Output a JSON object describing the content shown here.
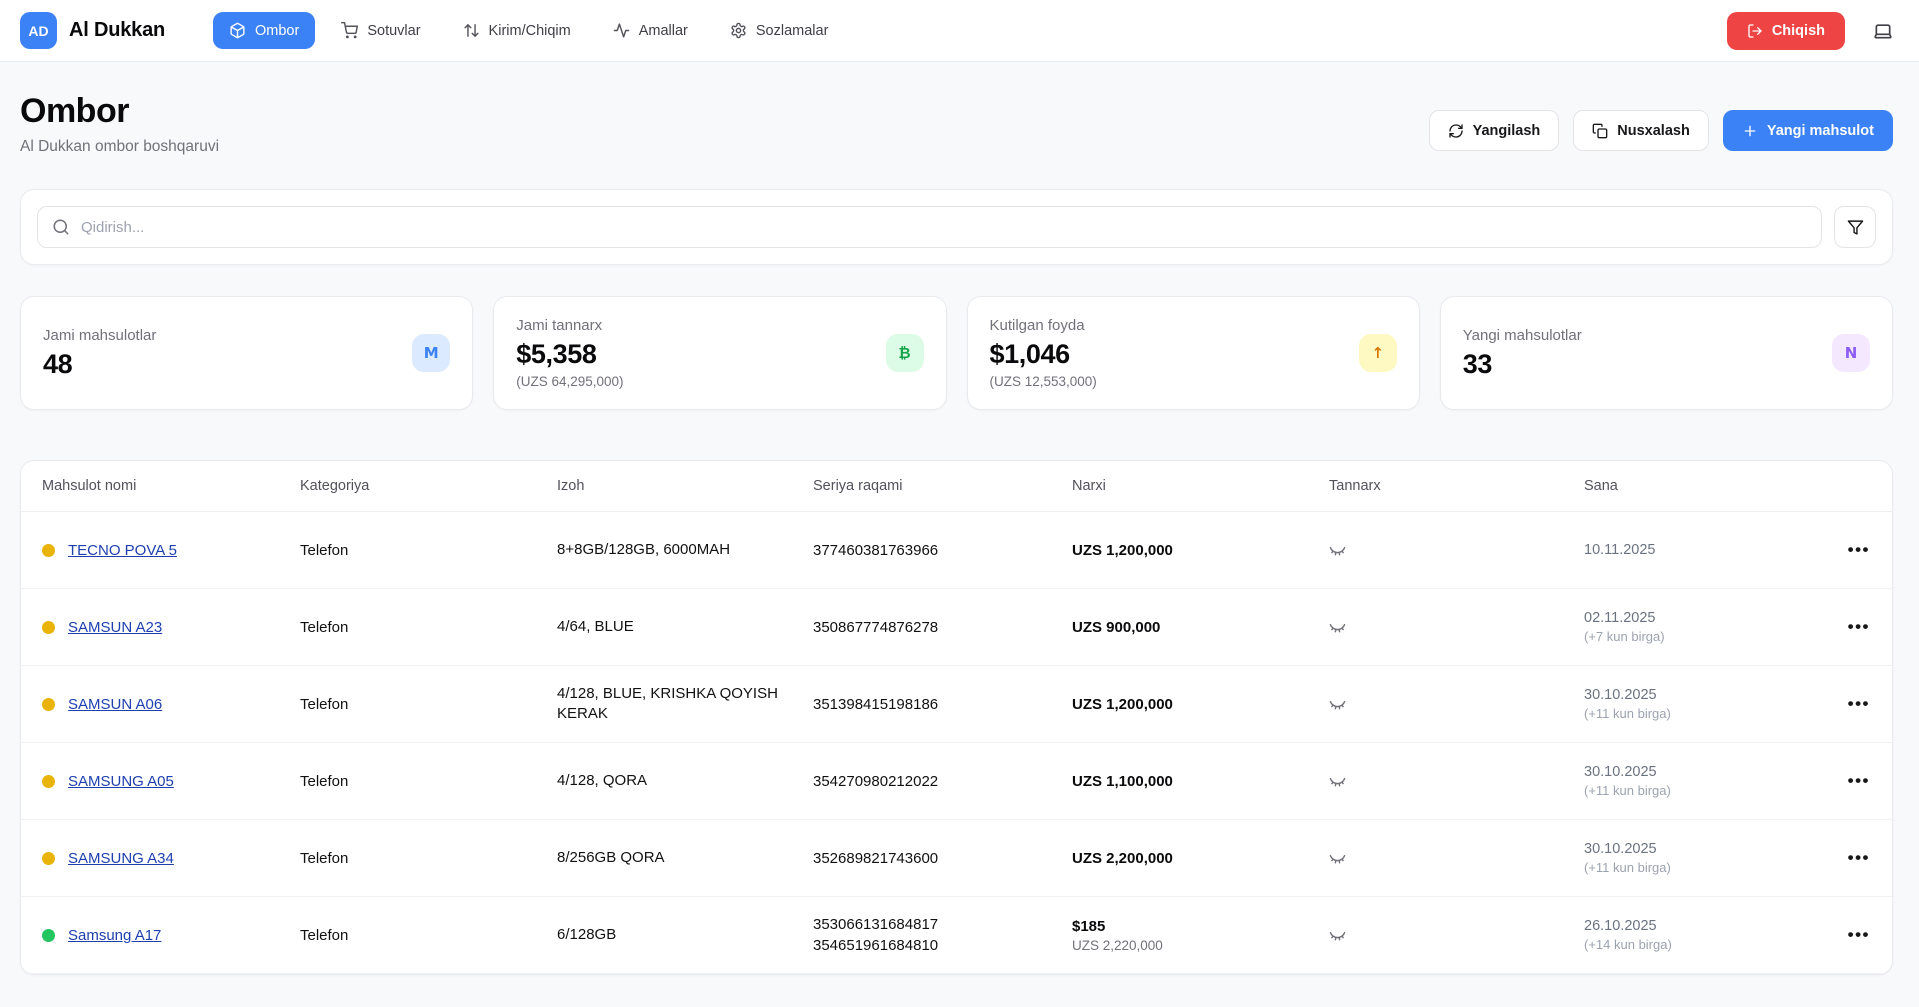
{
  "brand": {
    "initials": "AD",
    "name": "Al Dukkan"
  },
  "nav": {
    "items": [
      {
        "label": "Ombor",
        "icon": "package-icon",
        "active": true
      },
      {
        "label": "Sotuvlar",
        "icon": "cart-icon",
        "active": false
      },
      {
        "label": "Kirim/Chiqim",
        "icon": "arrows-up-down-icon",
        "active": false
      },
      {
        "label": "Amallar",
        "icon": "activity-icon",
        "active": false
      },
      {
        "label": "Sozlamalar",
        "icon": "gear-icon",
        "active": false
      }
    ],
    "logout_label": "Chiqish"
  },
  "header": {
    "title": "Ombor",
    "subtitle": "Al Dukkan ombor boshqaruvi",
    "refresh_label": "Yangilash",
    "duplicate_label": "Nusxalash",
    "new_product_label": "Yangi mahsulot"
  },
  "search": {
    "placeholder": "Qidirish..."
  },
  "stats": [
    {
      "label": "Jami mahsulotlar",
      "value": "48",
      "sub": "",
      "badge": "M",
      "badge_bg": "#dbeafe",
      "badge_color": "#3b82f6"
    },
    {
      "label": "Jami tannarx",
      "value": "$5,358",
      "sub": "(UZS 64,295,000)",
      "badge": "₿",
      "badge_bg": "#dcfce7",
      "badge_color": "#16a34a"
    },
    {
      "label": "Kutilgan foyda",
      "value": "$1,046",
      "sub": "(UZS 12,553,000)",
      "badge": "↑",
      "badge_bg": "#fef9c3",
      "badge_color": "#d97706"
    },
    {
      "label": "Yangi mahsulotlar",
      "value": "33",
      "sub": "",
      "badge": "N",
      "badge_bg": "#f3e8ff",
      "badge_color": "#8b5cf6"
    }
  ],
  "table": {
    "columns": [
      "Mahsulot nomi",
      "Kategoriya",
      "Izoh",
      "Seriya raqami",
      "Narxi",
      "Tannarx",
      "Sana"
    ],
    "rows": [
      {
        "status_color": "#eab308",
        "name": "TECNO POVA 5",
        "category": "Telefon",
        "description": "8+8GB/128GB, 6000MAH",
        "serials": [
          "377460381763966"
        ],
        "price": "UZS 1,200,000",
        "price_sub": "",
        "date": "10.11.2025",
        "date_sub": ""
      },
      {
        "status_color": "#eab308",
        "name": "SAMSUN A23",
        "category": "Telefon",
        "description": "4/64, BLUE",
        "serials": [
          "350867774876278"
        ],
        "price": "UZS 900,000",
        "price_sub": "",
        "date": "02.11.2025",
        "date_sub": "(+7 kun birga)"
      },
      {
        "status_color": "#eab308",
        "name": "SAMSUN A06",
        "category": "Telefon",
        "description": "4/128, BLUE, KRISHKA QOYISH KERAK",
        "serials": [
          "351398415198186"
        ],
        "price": "UZS 1,200,000",
        "price_sub": "",
        "date": "30.10.2025",
        "date_sub": "(+11 kun birga)"
      },
      {
        "status_color": "#eab308",
        "name": "SAMSUNG A05",
        "category": "Telefon",
        "description": "4/128, QORA",
        "serials": [
          "354270980212022"
        ],
        "price": "UZS 1,100,000",
        "price_sub": "",
        "date": "30.10.2025",
        "date_sub": "(+11 kun birga)"
      },
      {
        "status_color": "#eab308",
        "name": "SAMSUNG A34",
        "category": "Telefon",
        "description": "8/256GB QORA",
        "serials": [
          "352689821743600"
        ],
        "price": "UZS 2,200,000",
        "price_sub": "",
        "date": "30.10.2025",
        "date_sub": "(+11 kun birga)"
      },
      {
        "status_color": "#22c55e",
        "name": "Samsung A17",
        "category": "Telefon",
        "description": "6/128GB",
        "serials": [
          "353066131684817",
          "354651961684810"
        ],
        "price": "$185",
        "price_sub": "UZS 2,220,000",
        "date": "26.10.2025",
        "date_sub": "(+14 kun birga)"
      }
    ]
  }
}
